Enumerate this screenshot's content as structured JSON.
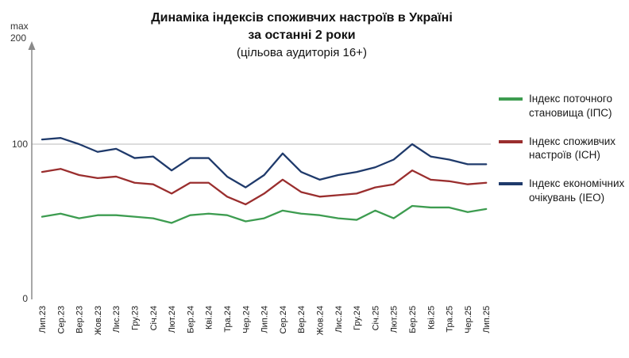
{
  "title": {
    "line1": "Динаміка індексів споживчих настроїв в Україні",
    "line2": "за останні 2 роки",
    "subtitle": "(цільова аудиторія 16+)"
  },
  "axis": {
    "max_word": "max",
    "max_value": "200"
  },
  "legend": {
    "items": [
      {
        "label": "Індекс поточного становища (ІПС)",
        "color": "#3d9c50"
      },
      {
        "label": "Індекс споживчих настроїв (ІСН)",
        "color": "#9a2e2e"
      },
      {
        "label": "Індекс економічних очікувань (ІЕО)",
        "color": "#1f3a6b"
      }
    ]
  },
  "chart_data": {
    "type": "line",
    "title": "Динаміка індексів споживчих настроїв в Україні за останні 2 роки (цільова аудиторія 16+)",
    "x": [
      "Лип.23",
      "Сер.23",
      "Вер.23",
      "Жов.23",
      "Лис.23",
      "Гру.23",
      "Січ.24",
      "Лют.24",
      "Бер.24",
      "Кві.24",
      "Тра.24",
      "Чер.24",
      "Лип.24",
      "Сер.24",
      "Вер.24",
      "Жов.24",
      "Лис.24",
      "Гру.24",
      "Січ.25",
      "Лют.25",
      "Бер.25",
      "Кві.25",
      "Тра.25",
      "Чер.25",
      "Лип.25"
    ],
    "series": [
      {
        "name": "Індекс поточного становища (ІПС)",
        "color": "#3d9c50",
        "values": [
          53,
          55,
          52,
          54,
          54,
          53,
          52,
          49,
          54,
          55,
          54,
          50,
          52,
          57,
          55,
          54,
          52,
          51,
          57,
          52,
          60,
          59,
          59,
          56,
          58
        ]
      },
      {
        "name": "Індекс споживчих настроїв (ІСН)",
        "color": "#9a2e2e",
        "values": [
          82,
          84,
          80,
          78,
          79,
          75,
          74,
          68,
          75,
          75,
          66,
          61,
          68,
          77,
          69,
          66,
          67,
          68,
          72,
          74,
          83,
          77,
          76,
          74,
          75
        ]
      },
      {
        "name": "Індекс економічних очікувань (ІЕО)",
        "color": "#1f3a6b",
        "values": [
          103,
          104,
          100,
          95,
          97,
          91,
          92,
          83,
          91,
          91,
          79,
          72,
          80,
          94,
          82,
          77,
          80,
          82,
          85,
          90,
          100,
          92,
          90,
          87,
          87
        ]
      }
    ],
    "ylim": [
      0,
      200
    ],
    "yticks": [
      {
        "value": 100,
        "label": "100"
      },
      {
        "value": 0,
        "label": "0"
      }
    ],
    "gridlines": [
      100
    ],
    "legend_position": "right",
    "grid": "horizontal-at-100-only"
  }
}
